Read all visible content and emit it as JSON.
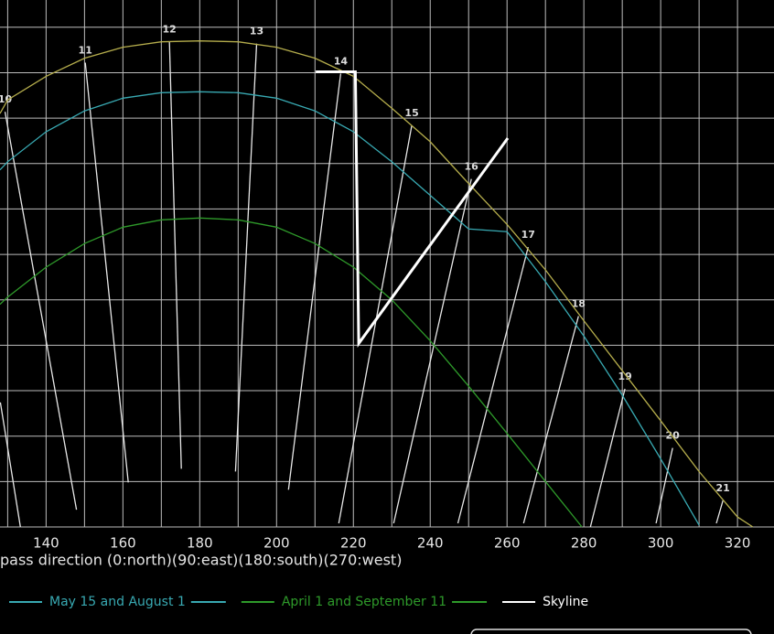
{
  "chart_data": {
    "type": "line",
    "x_label": "pass direction (0:north)(90:east)(180:south)(270:west)",
    "xlim": [
      128,
      329.5
    ],
    "ylim": [
      0,
      58
    ],
    "xticks": [
      140,
      160,
      180,
      200,
      220,
      240,
      260,
      280,
      300,
      320
    ],
    "x_minor_ticks": [
      130,
      150,
      170,
      190,
      210,
      230,
      250,
      270,
      290,
      310
    ],
    "yticks": [
      0,
      5,
      10,
      15,
      20,
      25,
      30,
      35,
      40,
      45,
      50,
      55
    ],
    "grid": true,
    "series": [
      {
        "color": "#b5ad4c",
        "x": [
          128,
          130,
          140,
          150,
          160,
          170,
          180,
          190,
          200,
          210,
          220,
          230,
          240,
          250,
          260,
          270,
          280,
          290,
          300,
          310,
          320,
          324
        ],
        "values": [
          45.5,
          47,
          49.6,
          51.6,
          52.8,
          53.4,
          53.5,
          53.4,
          52.8,
          51.6,
          49.6,
          46.1,
          42.4,
          37.8,
          33.3,
          28.3,
          22.7,
          17.2,
          11.7,
          6.1,
          1.1,
          0
        ]
      },
      {
        "name": "May 15 and August 1",
        "color": "#38a9b2",
        "x": [
          128,
          130,
          140,
          150,
          160,
          170,
          180,
          190,
          200,
          210,
          220,
          230,
          240,
          250,
          260,
          270,
          280,
          290,
          300,
          310
        ],
        "values": [
          39.3,
          40.2,
          43.5,
          45.8,
          47.2,
          47.8,
          47.9,
          47.8,
          47.2,
          45.8,
          43.5,
          40.2,
          36.5,
          32.8,
          32.5,
          27,
          21,
          14.5,
          7.5,
          0.2
        ]
      },
      {
        "name": "April 1 and September 11",
        "color": "#2e9a2a",
        "x": [
          128,
          130,
          140,
          150,
          160,
          170,
          180,
          190,
          200,
          210,
          220,
          230,
          240,
          250,
          260,
          270,
          279.5
        ],
        "values": [
          24.5,
          25.3,
          28.6,
          31.2,
          33,
          33.8,
          34,
          33.8,
          33,
          31.2,
          28.6,
          25,
          20.5,
          15.5,
          10.3,
          5,
          0
        ]
      },
      {
        "name": "Skyline",
        "color": "#ffffff",
        "x": [
          210.2,
          220.5,
          221.4,
          260.2
        ],
        "values": [
          50.1,
          50.1,
          20.2,
          42.8
        ]
      }
    ],
    "hour_lines": [
      {
        "label": null,
        "x": [
          128.1,
          133.3
        ],
        "values": [
          13.7,
          0
        ]
      },
      {
        "label": "10",
        "x": [
          129.3,
          147.9
        ],
        "values": [
          45.7,
          1.9
        ]
      },
      {
        "label": "11",
        "x": [
          150.2,
          161.4
        ],
        "values": [
          51.1,
          4.9
        ]
      },
      {
        "label": "12",
        "x": [
          172.1,
          175.2
        ],
        "values": [
          53.4,
          6.4
        ]
      },
      {
        "label": "13",
        "x": [
          194.8,
          189.3
        ],
        "values": [
          53.2,
          6.1
        ]
      },
      {
        "label": "14",
        "x": [
          216.7,
          203.1
        ],
        "values": [
          49.9,
          4.1
        ]
      },
      {
        "label": "15",
        "x": [
          235.2,
          216.2
        ],
        "values": [
          44.2,
          0.4
        ]
      },
      {
        "label": "16",
        "x": [
          250.7,
          230.5
        ],
        "values": [
          38.3,
          0.4
        ]
      },
      {
        "label": "17",
        "x": [
          265.5,
          247.2
        ],
        "values": [
          30.8,
          0.4
        ]
      },
      {
        "label": "18",
        "x": [
          278.6,
          264.3
        ],
        "values": [
          23.2,
          0.4
        ]
      },
      {
        "label": "19",
        "x": [
          290.7,
          281.7
        ],
        "values": [
          15.2,
          0
        ]
      },
      {
        "label": "20",
        "x": [
          303.1,
          298.8
        ],
        "values": [
          8.7,
          0.4
        ]
      },
      {
        "label": "21",
        "x": [
          316.2,
          314.5
        ],
        "values": [
          2.9,
          0.4
        ]
      }
    ]
  }
}
